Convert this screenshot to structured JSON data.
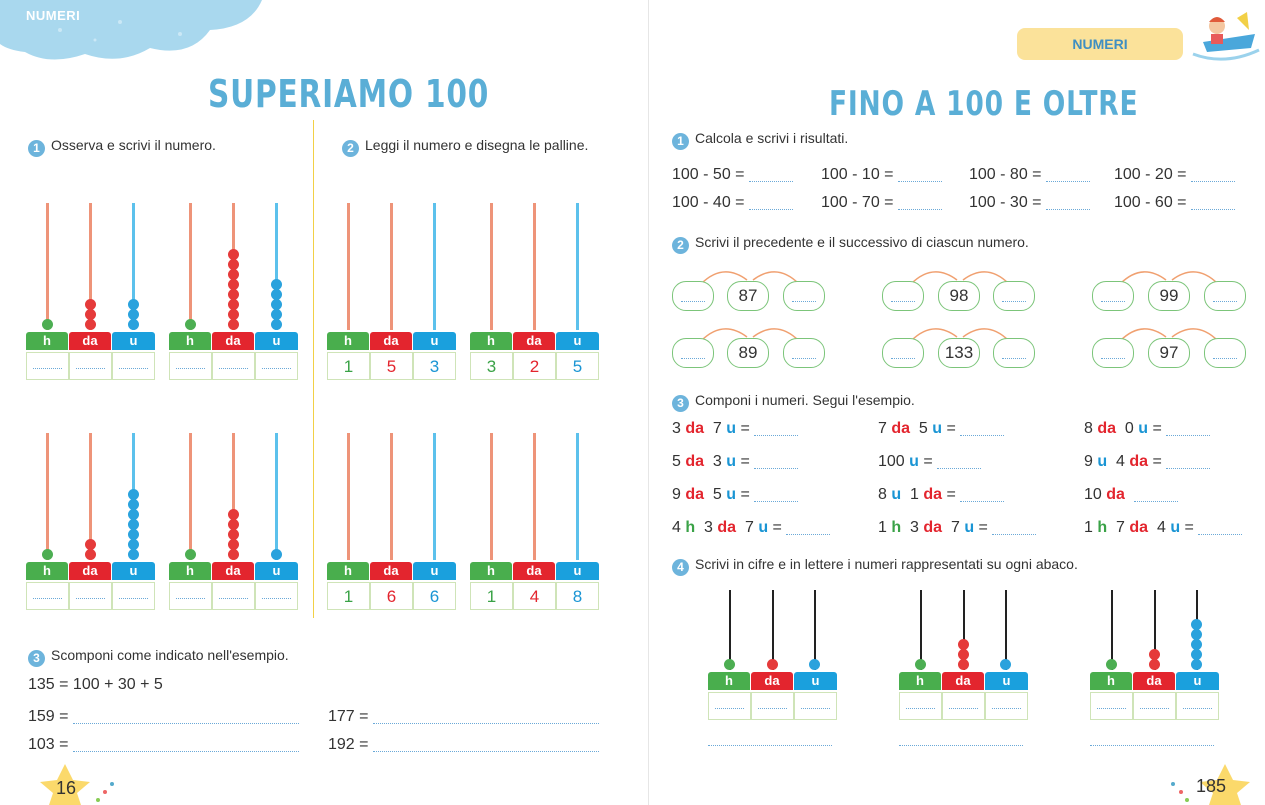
{
  "left": {
    "tag": "NUMERI",
    "title": "SUPERIAMO 100",
    "ex1": {
      "num": "1",
      "text": "Osserva e scrivi il numero."
    },
    "ex2": {
      "num": "2",
      "text": "Leggi il numero e disegna le palline."
    },
    "headers": {
      "h": "h",
      "da": "da",
      "u": "u"
    },
    "ex2_values": [
      {
        "h": "1",
        "da": "5",
        "u": "3"
      },
      {
        "h": "3",
        "da": "2",
        "u": "5"
      },
      {
        "h": "1",
        "da": "6",
        "u": "6"
      },
      {
        "h": "1",
        "da": "4",
        "u": "8"
      }
    ],
    "ex3": {
      "num": "3",
      "text": "Scomponi come indicato nell'esempio.",
      "example": "135 = 100 + 30 + 5",
      "items": [
        "159 =",
        "177 =",
        "103 =",
        "192 ="
      ]
    },
    "page_number": "16"
  },
  "right": {
    "tag": "NUMERI",
    "title": "FINO A 100 E OLTRE",
    "ex1": {
      "num": "1",
      "text": "Calcola e scrivi i risultati.",
      "items": [
        "100 - 50 =",
        "100 - 10 =",
        "100 - 80 =",
        "100 - 20 =",
        "100 - 40 =",
        "100 - 70 =",
        "100 - 30 =",
        "100 - 60 ="
      ]
    },
    "ex2": {
      "num": "2",
      "text": "Scrivi il precedente e il successivo di ciascun numero.",
      "numbers": [
        "87",
        "98",
        "99",
        "89",
        "133",
        "97"
      ]
    },
    "ex3": {
      "num": "3",
      "text": "Componi i numeri. Segui l'esempio.",
      "rows": [
        [
          "3",
          "da",
          "7",
          "u",
          "="
        ],
        [
          "7",
          "da",
          "5",
          "u",
          "="
        ],
        [
          "8",
          "da",
          "0",
          "u",
          "="
        ],
        [
          "5",
          "da",
          "3",
          "u",
          "="
        ],
        [
          "100",
          "u",
          "="
        ],
        [
          "9",
          "u",
          "4",
          "da",
          "="
        ],
        [
          "9",
          "da",
          "5",
          "u",
          "="
        ],
        [
          "8",
          "u",
          "1",
          "da",
          "="
        ],
        [
          "10",
          "da"
        ],
        [
          "4",
          "h",
          "3",
          "da",
          "7",
          "u",
          "="
        ],
        [
          "1",
          "h",
          "3",
          "da",
          "7",
          "u",
          "="
        ],
        [
          "1",
          "h",
          "7",
          "da",
          "4",
          "u",
          "="
        ]
      ]
    },
    "ex4": {
      "num": "4",
      "text": "Scrivi in cifre e in lettere i numeri rappresentati su ogni abaco."
    },
    "page_number": "185"
  },
  "colors": {
    "accent_blue": "#5aaed6",
    "h": "#49ae4d",
    "da": "#e3252e",
    "u": "#1aa0dd",
    "rod_orange": "#ee9479",
    "rod_blue": "#5cc1ec"
  }
}
